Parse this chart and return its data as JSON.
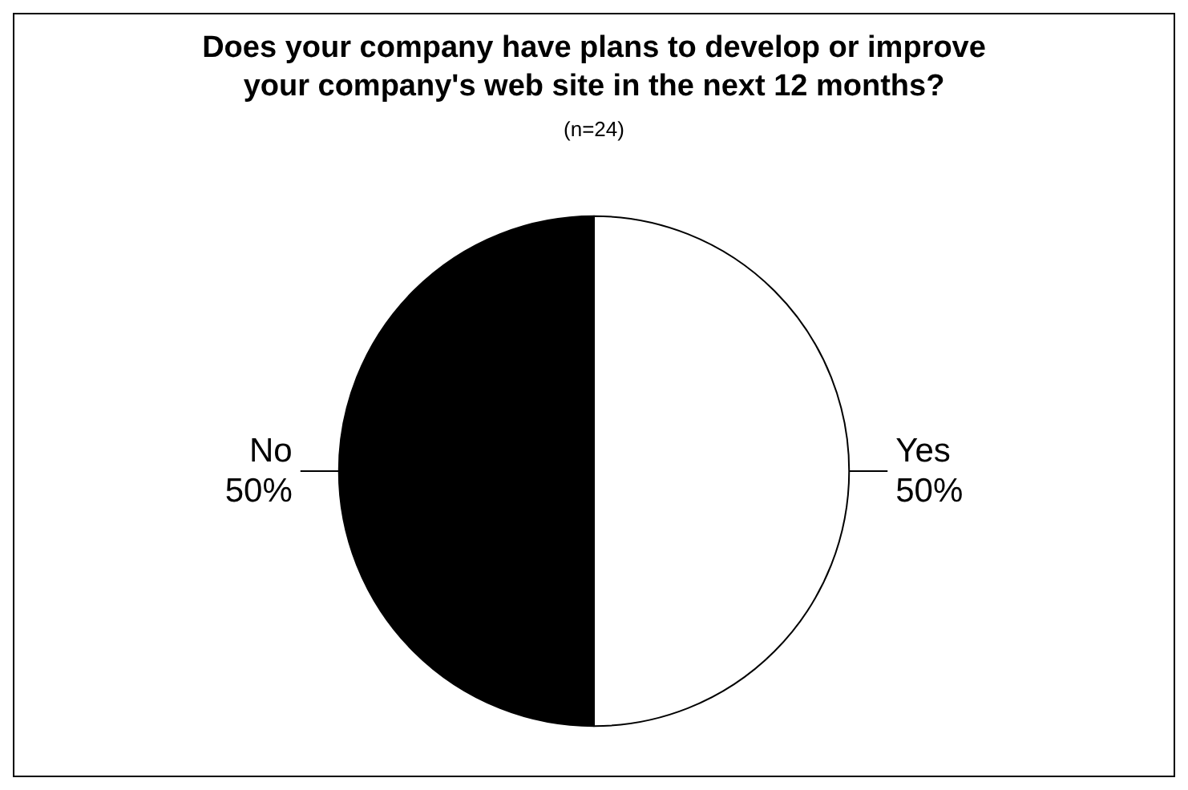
{
  "chart_data": {
    "type": "pie",
    "title": "Does your company have plans to develop or improve\nyour company's web site in the next 12 months?",
    "subtitle": "(n=24)",
    "categories": [
      "Yes",
      "No"
    ],
    "values": [
      50,
      50
    ],
    "colors": [
      "#ffffff",
      "#000000"
    ],
    "value_labels": [
      "50%",
      "50%"
    ],
    "legend": false
  }
}
